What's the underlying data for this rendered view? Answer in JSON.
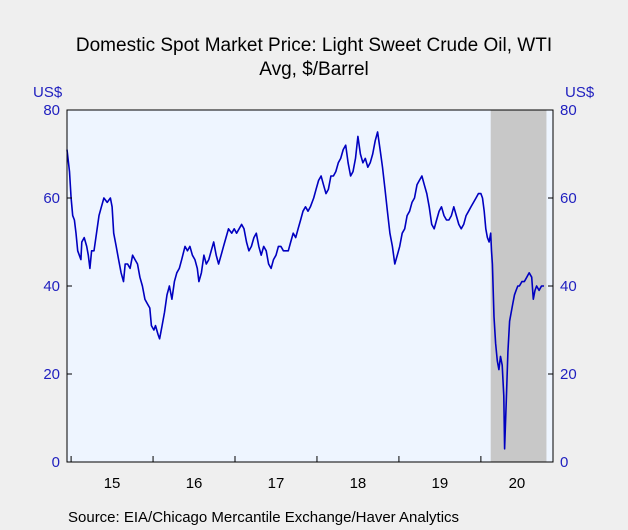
{
  "title_line1": "Domestic Spot Market Price: Light Sweet Crude Oil, WTI",
  "title_line2": "Avg, $/Barrel",
  "unit_left": "US$",
  "unit_right": "US$",
  "source": "Source:   EIA/Chicago Mercantile Exchange/Haver Analytics",
  "colors": {
    "line": "#0000c0",
    "plot_bg": "#eef5ff",
    "recession": "#c8c8c8",
    "axis_text": "#1f1fbf"
  },
  "chart_data": {
    "type": "line",
    "x_unit": "year (weekly observations)",
    "ylim": [
      0,
      80
    ],
    "yticks": [
      0,
      20,
      40,
      60,
      80
    ],
    "xtick_labels": [
      "15",
      "16",
      "17",
      "18",
      "19",
      "20"
    ],
    "xlim": [
      2014.95,
      2020.88
    ],
    "recession_shade": [
      2020.12,
      2020.8
    ],
    "series": [
      {
        "points": [
          [
            2014.95,
            71
          ],
          [
            2014.98,
            66
          ],
          [
            2015.0,
            60
          ],
          [
            2015.02,
            56
          ],
          [
            2015.04,
            55
          ],
          [
            2015.06,
            52
          ],
          [
            2015.08,
            48
          ],
          [
            2015.1,
            47
          ],
          [
            2015.12,
            46
          ],
          [
            2015.13,
            50
          ],
          [
            2015.16,
            51
          ],
          [
            2015.19,
            49
          ],
          [
            2015.21,
            47
          ],
          [
            2015.23,
            44
          ],
          [
            2015.25,
            48
          ],
          [
            2015.28,
            48
          ],
          [
            2015.31,
            52
          ],
          [
            2015.34,
            56
          ],
          [
            2015.37,
            58
          ],
          [
            2015.4,
            60
          ],
          [
            2015.44,
            59
          ],
          [
            2015.48,
            60
          ],
          [
            2015.5,
            58
          ],
          [
            2015.52,
            52
          ],
          [
            2015.55,
            49
          ],
          [
            2015.58,
            46
          ],
          [
            2015.61,
            43
          ],
          [
            2015.64,
            41
          ],
          [
            2015.66,
            45
          ],
          [
            2015.69,
            45
          ],
          [
            2015.72,
            44
          ],
          [
            2015.75,
            47
          ],
          [
            2015.78,
            46
          ],
          [
            2015.81,
            45
          ],
          [
            2015.84,
            42
          ],
          [
            2015.87,
            40
          ],
          [
            2015.9,
            37
          ],
          [
            2015.93,
            36
          ],
          [
            2015.96,
            35
          ],
          [
            2015.98,
            31
          ],
          [
            2016.01,
            30
          ],
          [
            2016.03,
            31
          ],
          [
            2016.06,
            29
          ],
          [
            2016.08,
            28
          ],
          [
            2016.11,
            31
          ],
          [
            2016.14,
            34
          ],
          [
            2016.17,
            38
          ],
          [
            2016.2,
            40
          ],
          [
            2016.23,
            37
          ],
          [
            2016.26,
            41
          ],
          [
            2016.29,
            43
          ],
          [
            2016.32,
            44
          ],
          [
            2016.35,
            46
          ],
          [
            2016.39,
            49
          ],
          [
            2016.42,
            48
          ],
          [
            2016.45,
            49
          ],
          [
            2016.48,
            47
          ],
          [
            2016.51,
            46
          ],
          [
            2016.54,
            44
          ],
          [
            2016.56,
            41
          ],
          [
            2016.59,
            43
          ],
          [
            2016.62,
            47
          ],
          [
            2016.65,
            45
          ],
          [
            2016.68,
            46
          ],
          [
            2016.71,
            48
          ],
          [
            2016.74,
            50
          ],
          [
            2016.77,
            47
          ],
          [
            2016.8,
            45
          ],
          [
            2016.83,
            47
          ],
          [
            2016.86,
            49
          ],
          [
            2016.89,
            51
          ],
          [
            2016.92,
            53
          ],
          [
            2016.96,
            52
          ],
          [
            2016.99,
            53
          ],
          [
            2017.02,
            52
          ],
          [
            2017.05,
            53
          ],
          [
            2017.08,
            54
          ],
          [
            2017.11,
            53
          ],
          [
            2017.14,
            50
          ],
          [
            2017.17,
            48
          ],
          [
            2017.2,
            49
          ],
          [
            2017.23,
            51
          ],
          [
            2017.26,
            52
          ],
          [
            2017.29,
            49
          ],
          [
            2017.32,
            47
          ],
          [
            2017.35,
            49
          ],
          [
            2017.38,
            48
          ],
          [
            2017.41,
            45
          ],
          [
            2017.44,
            44
          ],
          [
            2017.47,
            46
          ],
          [
            2017.5,
            47
          ],
          [
            2017.53,
            49
          ],
          [
            2017.56,
            49
          ],
          [
            2017.59,
            48
          ],
          [
            2017.62,
            48
          ],
          [
            2017.65,
            48
          ],
          [
            2017.68,
            50
          ],
          [
            2017.71,
            52
          ],
          [
            2017.74,
            51
          ],
          [
            2017.77,
            53
          ],
          [
            2017.8,
            55
          ],
          [
            2017.83,
            57
          ],
          [
            2017.86,
            58
          ],
          [
            2017.89,
            57
          ],
          [
            2017.92,
            58
          ],
          [
            2017.96,
            60
          ],
          [
            2017.99,
            62
          ],
          [
            2018.02,
            64
          ],
          [
            2018.05,
            65
          ],
          [
            2018.08,
            63
          ],
          [
            2018.11,
            61
          ],
          [
            2018.14,
            62
          ],
          [
            2018.17,
            65
          ],
          [
            2018.2,
            65
          ],
          [
            2018.23,
            66
          ],
          [
            2018.26,
            68
          ],
          [
            2018.29,
            69
          ],
          [
            2018.32,
            71
          ],
          [
            2018.35,
            72
          ],
          [
            2018.38,
            68
          ],
          [
            2018.41,
            65
          ],
          [
            2018.44,
            66
          ],
          [
            2018.47,
            69
          ],
          [
            2018.5,
            74
          ],
          [
            2018.53,
            70
          ],
          [
            2018.56,
            68
          ],
          [
            2018.59,
            69
          ],
          [
            2018.62,
            67
          ],
          [
            2018.65,
            68
          ],
          [
            2018.68,
            70
          ],
          [
            2018.71,
            73
          ],
          [
            2018.74,
            75
          ],
          [
            2018.77,
            71
          ],
          [
            2018.8,
            67
          ],
          [
            2018.83,
            62
          ],
          [
            2018.86,
            57
          ],
          [
            2018.89,
            52
          ],
          [
            2018.92,
            49
          ],
          [
            2018.95,
            45
          ],
          [
            2018.98,
            47
          ],
          [
            2019.01,
            49
          ],
          [
            2019.04,
            52
          ],
          [
            2019.07,
            53
          ],
          [
            2019.1,
            56
          ],
          [
            2019.13,
            57
          ],
          [
            2019.16,
            59
          ],
          [
            2019.19,
            60
          ],
          [
            2019.22,
            63
          ],
          [
            2019.25,
            64
          ],
          [
            2019.28,
            65
          ],
          [
            2019.31,
            63
          ],
          [
            2019.34,
            61
          ],
          [
            2019.37,
            58
          ],
          [
            2019.4,
            54
          ],
          [
            2019.43,
            53
          ],
          [
            2019.46,
            55
          ],
          [
            2019.49,
            57
          ],
          [
            2019.52,
            58
          ],
          [
            2019.55,
            56
          ],
          [
            2019.58,
            55
          ],
          [
            2019.61,
            55
          ],
          [
            2019.64,
            56
          ],
          [
            2019.67,
            58
          ],
          [
            2019.7,
            56
          ],
          [
            2019.73,
            54
          ],
          [
            2019.76,
            53
          ],
          [
            2019.79,
            54
          ],
          [
            2019.82,
            56
          ],
          [
            2019.85,
            57
          ],
          [
            2019.88,
            58
          ],
          [
            2019.91,
            59
          ],
          [
            2019.94,
            60
          ],
          [
            2019.97,
            61
          ],
          [
            2020.0,
            61
          ],
          [
            2020.02,
            60
          ],
          [
            2020.04,
            57
          ],
          [
            2020.06,
            53
          ],
          [
            2020.08,
            51
          ],
          [
            2020.1,
            50
          ],
          [
            2020.12,
            52
          ],
          [
            2020.13,
            48
          ],
          [
            2020.14,
            45
          ],
          [
            2020.16,
            33
          ],
          [
            2020.18,
            27
          ],
          [
            2020.2,
            23
          ],
          [
            2020.22,
            21
          ],
          [
            2020.24,
            24
          ],
          [
            2020.26,
            22
          ],
          [
            2020.28,
            15
          ],
          [
            2020.29,
            3
          ],
          [
            2020.31,
            14
          ],
          [
            2020.33,
            25
          ],
          [
            2020.35,
            32
          ],
          [
            2020.37,
            34
          ],
          [
            2020.39,
            36
          ],
          [
            2020.41,
            38
          ],
          [
            2020.43,
            39
          ],
          [
            2020.45,
            40
          ],
          [
            2020.47,
            40
          ],
          [
            2020.5,
            41
          ],
          [
            2020.53,
            41
          ],
          [
            2020.56,
            42
          ],
          [
            2020.59,
            43
          ],
          [
            2020.62,
            42
          ],
          [
            2020.64,
            37
          ],
          [
            2020.66,
            39
          ],
          [
            2020.68,
            40
          ],
          [
            2020.71,
            39
          ],
          [
            2020.74,
            40
          ],
          [
            2020.77,
            40
          ]
        ]
      }
    ]
  }
}
